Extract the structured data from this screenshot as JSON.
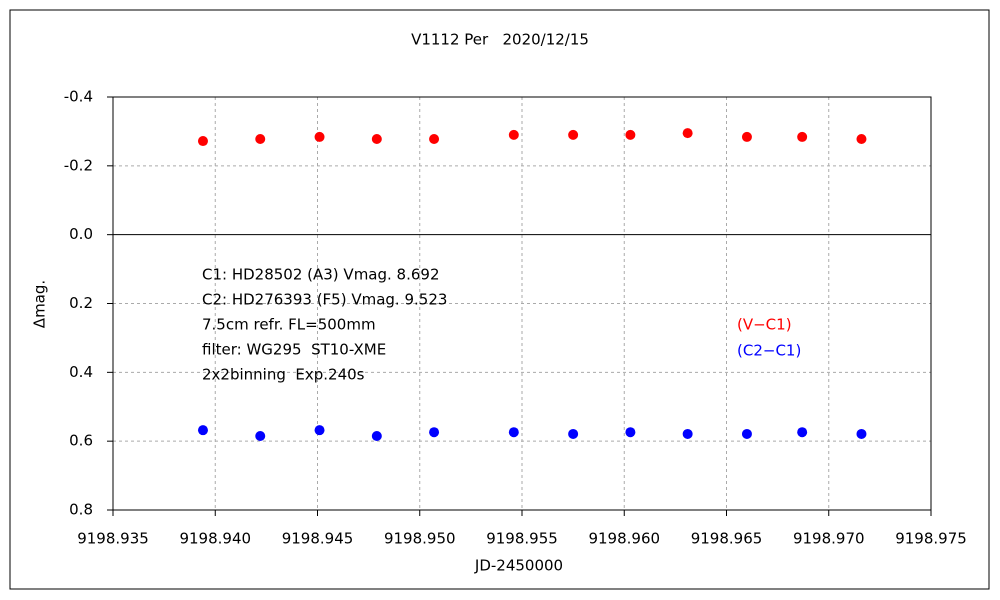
{
  "chart_data": {
    "type": "scatter",
    "title": "V1112 Per   2020/12/15",
    "x_label": "JD-2450000",
    "y_label": "Δmag.",
    "xlim": [
      9198.935,
      9198.975
    ],
    "xticks": [
      {
        "value": 9198.935,
        "label": "9198.935"
      },
      {
        "value": 9198.94,
        "label": "9198.940"
      },
      {
        "value": 9198.945,
        "label": "9198.945"
      },
      {
        "value": 9198.95,
        "label": "9198.950"
      },
      {
        "value": 9198.955,
        "label": "9198.955"
      },
      {
        "value": 9198.96,
        "label": "9198.960"
      },
      {
        "value": 9198.965,
        "label": "9198.965"
      },
      {
        "value": 9198.97,
        "label": "9198.970"
      },
      {
        "value": 9198.975,
        "label": "9198.975"
      }
    ],
    "ylim": [
      -0.4,
      0.8
    ],
    "y_inverted": true,
    "yticks": [
      -0.4,
      -0.2,
      {
        "value": 0,
        "label": "0.0"
      },
      0.2,
      0.4,
      0.6,
      0.8
    ],
    "grid": true,
    "legend": "right",
    "series": [
      {
        "name": "(V−C1)",
        "color": "#ff0000",
        "x": [
          9198.9394,
          9198.9422,
          9198.9451,
          9198.9479,
          9198.9507,
          9198.9546,
          9198.9575,
          9198.9603,
          9198.9631,
          9198.966,
          9198.9687,
          9198.9716
        ],
        "values": [
          -0.272,
          -0.278,
          -0.284,
          -0.278,
          -0.278,
          -0.29,
          -0.29,
          -0.29,
          -0.295,
          -0.284,
          -0.284,
          -0.278
        ]
      },
      {
        "name": "(C2−C1)",
        "color": "#0000ff",
        "x": [
          9198.9394,
          9198.9422,
          9198.9451,
          9198.9479,
          9198.9507,
          9198.9546,
          9198.9575,
          9198.9603,
          9198.9631,
          9198.966,
          9198.9687,
          9198.9716
        ],
        "values": [
          0.568,
          0.585,
          0.568,
          0.585,
          0.574,
          0.574,
          0.579,
          0.574,
          0.579,
          0.579,
          0.574,
          0.579
        ]
      }
    ],
    "annotations": [
      "C1: HD28502 (A3) Vmag. 8.692",
      "C2: HD276393 (F5) Vmag. 9.523",
      "7.5cm refr. FL=500mm",
      "filter: WG295  ST10-XME",
      "2x2binning  Exp.240s"
    ]
  }
}
